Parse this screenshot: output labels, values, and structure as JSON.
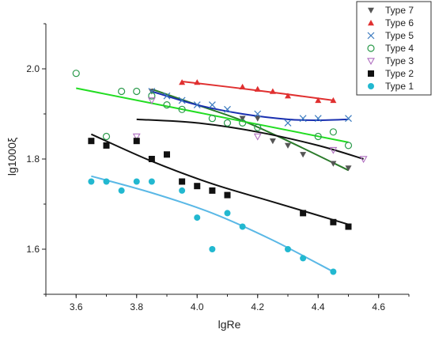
{
  "chart_data": {
    "type": "scatter",
    "xlabel": "lgRe",
    "ylabel": "lg1000ξ",
    "xlim": [
      3.5,
      4.7
    ],
    "ylim": [
      1.5,
      2.1
    ],
    "xticks": [
      3.6,
      3.8,
      4.0,
      4.2,
      4.4,
      4.6
    ],
    "yticks": [
      1.6,
      1.8,
      2.0
    ],
    "x_tick_labels": [
      "3.6",
      "3.8",
      "4.0",
      "4.2",
      "4.4",
      "4.6"
    ],
    "y_tick_labels": [
      "1.6",
      "1.8",
      "2.0"
    ],
    "grid": false,
    "legend_position": "top-right",
    "series": [
      {
        "name": "Type 7",
        "marker": "triangle-down",
        "color": "#555555",
        "fit_color": "#2a7a2a",
        "x": [
          3.85,
          4.15,
          4.2,
          4.25,
          4.3,
          4.35,
          4.45,
          4.5
        ],
        "y": [
          1.95,
          1.89,
          1.89,
          1.84,
          1.83,
          1.81,
          1.79,
          1.78
        ],
        "fit_x": [
          3.85,
          4.0,
          4.15,
          4.3,
          4.5
        ],
        "fit_y": [
          1.955,
          1.92,
          1.885,
          1.84,
          1.775
        ]
      },
      {
        "name": "Type 6",
        "marker": "triangle-up",
        "color": "#e03030",
        "fit_color": "#e03030",
        "x": [
          3.95,
          4.0,
          4.15,
          4.2,
          4.25,
          4.3,
          4.4,
          4.45
        ],
        "y": [
          1.97,
          1.97,
          1.96,
          1.955,
          1.95,
          1.94,
          1.93,
          1.93
        ],
        "fit_x": [
          3.95,
          4.2,
          4.45
        ],
        "fit_y": [
          1.972,
          1.952,
          1.93
        ]
      },
      {
        "name": "Type 5",
        "marker": "x",
        "color": "#3a7abf",
        "fit_color": "#1a30b0",
        "x": [
          3.85,
          3.9,
          3.95,
          4.0,
          4.05,
          4.1,
          4.2,
          4.3,
          4.35,
          4.4,
          4.5
        ],
        "y": [
          1.95,
          1.94,
          1.93,
          1.92,
          1.92,
          1.91,
          1.9,
          1.88,
          1.89,
          1.89,
          1.89
        ],
        "fit_x": [
          3.85,
          4.0,
          4.15,
          4.3,
          4.4,
          4.5
        ],
        "fit_y": [
          1.95,
          1.92,
          1.9,
          1.888,
          1.886,
          1.888
        ]
      },
      {
        "name": "Type 4",
        "marker": "circle-open",
        "color": "#2a9a4a",
        "fit_color": "#22dd22",
        "x": [
          3.6,
          3.7,
          3.75,
          3.8,
          3.85,
          3.9,
          3.95,
          4.05,
          4.1,
          4.15,
          4.2,
          4.4,
          4.45,
          4.5
        ],
        "y": [
          1.99,
          1.85,
          1.95,
          1.95,
          1.94,
          1.92,
          1.91,
          1.89,
          1.88,
          1.88,
          1.87,
          1.85,
          1.86,
          1.83
        ],
        "fit_x": [
          3.6,
          4.5
        ],
        "fit_y": [
          1.957,
          1.837
        ]
      },
      {
        "name": "Type 3",
        "marker": "triangle-down-open",
        "color": "#b070c0",
        "fit_color": "#111111",
        "x": [
          3.8,
          3.85,
          4.2,
          4.45,
          4.55
        ],
        "y": [
          1.85,
          1.93,
          1.85,
          1.82,
          1.8
        ],
        "fit_x": [
          3.8,
          4.0,
          4.2,
          4.4,
          4.55
        ],
        "fit_y": [
          1.888,
          1.88,
          1.86,
          1.83,
          1.8
        ]
      },
      {
        "name": "Type 2",
        "marker": "square",
        "color": "#111111",
        "fit_color": "#111111",
        "x": [
          3.65,
          3.7,
          3.8,
          3.85,
          3.9,
          3.95,
          4.0,
          4.05,
          4.1,
          4.35,
          4.45,
          4.5
        ],
        "y": [
          1.84,
          1.83,
          1.84,
          1.8,
          1.81,
          1.75,
          1.74,
          1.73,
          1.72,
          1.68,
          1.66,
          1.65
        ],
        "fit_x": [
          3.65,
          3.85,
          4.05,
          4.25,
          4.5
        ],
        "fit_y": [
          1.855,
          1.795,
          1.745,
          1.705,
          1.655
        ]
      },
      {
        "name": "Type 1",
        "marker": "circle",
        "color": "#22b8d0",
        "fit_color": "#5ab8e6",
        "x": [
          3.65,
          3.7,
          3.75,
          3.8,
          3.85,
          3.95,
          4.0,
          4.05,
          4.1,
          4.15,
          4.3,
          4.35,
          4.45
        ],
        "y": [
          1.75,
          1.75,
          1.73,
          1.75,
          1.75,
          1.73,
          1.67,
          1.6,
          1.68,
          1.65,
          1.6,
          1.58,
          1.55
        ],
        "fit_x": [
          3.65,
          3.85,
          4.05,
          4.25,
          4.45
        ],
        "fit_y": [
          1.762,
          1.725,
          1.68,
          1.62,
          1.55
        ]
      }
    ]
  }
}
